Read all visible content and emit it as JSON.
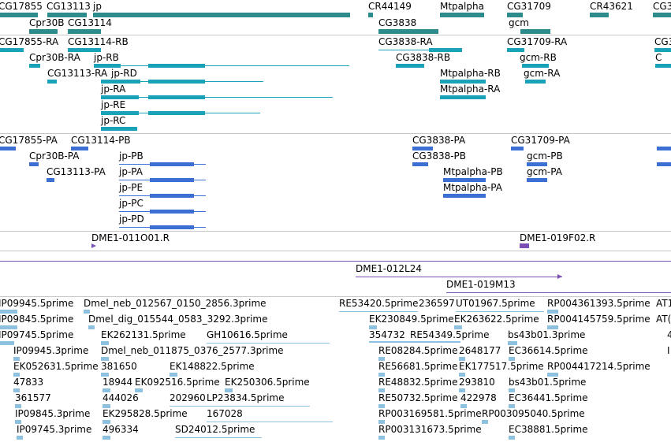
{
  "colors": {
    "gene": "#2e8b8b",
    "transcript": "#1aa3b8",
    "protein": "#3b6fd4",
    "clone": "#7a52b5",
    "est": "#8ec1e0"
  },
  "genes": [
    {
      "label": "CG17855",
      "name": "gene-cg17855"
    },
    {
      "label": "CG13113",
      "name": "gene-cg13113"
    },
    {
      "label": "jp",
      "name": "gene-jp"
    },
    {
      "label": "Cpr30B",
      "name": "gene-cpr30b"
    },
    {
      "label": "CG13114",
      "name": "gene-cg13114"
    },
    {
      "label": "CR44149",
      "name": "gene-cr44149"
    },
    {
      "label": "Mtpalpha",
      "name": "gene-mtpalpha"
    },
    {
      "label": "CG31709",
      "name": "gene-cg31709"
    },
    {
      "label": "CR43621",
      "name": "gene-cr43621"
    },
    {
      "label": "CG3",
      "name": "gene-cg3-edge"
    },
    {
      "label": "CG3838",
      "name": "gene-cg3838"
    },
    {
      "label": "gcm",
      "name": "gene-gcm"
    }
  ],
  "transcripts": [
    {
      "label": "CG17855-RA"
    },
    {
      "label": "CG13114-RB"
    },
    {
      "label": "CG3838-RA"
    },
    {
      "label": "CG31709-RA"
    },
    {
      "label": "CG3"
    },
    {
      "label": "Cpr30B-RA"
    },
    {
      "label": "jp-RB"
    },
    {
      "label": "CG3838-RB"
    },
    {
      "label": "gcm-RB"
    },
    {
      "label": "C"
    },
    {
      "label": "CG13113-RA"
    },
    {
      "label": "jp-RD"
    },
    {
      "label": "Mtpalpha-RB"
    },
    {
      "label": "gcm-RA"
    },
    {
      "label": "jp-RA"
    },
    {
      "label": "Mtpalpha-RA"
    },
    {
      "label": "jp-RE"
    },
    {
      "label": "jp-RC"
    }
  ],
  "proteins": [
    {
      "label": "CG17855-PA"
    },
    {
      "label": "CG13114-PB"
    },
    {
      "label": "CG3838-PA"
    },
    {
      "label": "CG31709-PA"
    },
    {
      "label": "Cpr30B-PA"
    },
    {
      "label": "jp-PB"
    },
    {
      "label": "CG3838-PB"
    },
    {
      "label": "gcm-PB"
    },
    {
      "label": "CG13113-PA"
    },
    {
      "label": "jp-PA"
    },
    {
      "label": "Mtpalpha-PB"
    },
    {
      "label": "gcm-PA"
    },
    {
      "label": "jp-PE"
    },
    {
      "label": "Mtpalpha-PA"
    },
    {
      "label": "jp-PC"
    },
    {
      "label": "jp-PD"
    }
  ],
  "clones": [
    {
      "label": "DME1-011O01.R"
    },
    {
      "label": "DME1-019F02.R"
    },
    {
      "label": "DME1-012L24"
    },
    {
      "label": "DME1-019M13"
    }
  ],
  "ests": [
    {
      "label": "IP09945.5prime"
    },
    {
      "label": "Dmel_neb_012567_0150_2856.3prime"
    },
    {
      "label": "RE53420.5prime"
    },
    {
      "label": "236597"
    },
    {
      "label": "UT01967.5prime"
    },
    {
      "label": "RP004361393.5prime"
    },
    {
      "label": "AT1"
    },
    {
      "label": "IP09845.5prime"
    },
    {
      "label": "Dmel_dig_015544_0583_3292.3prime"
    },
    {
      "label": "EK230849.5prime"
    },
    {
      "label": "EK263622.5prime"
    },
    {
      "label": "RP004145759.5prime"
    },
    {
      "label": "AT("
    },
    {
      "label": "IP09745.5prime"
    },
    {
      "label": "EK262131.5prime"
    },
    {
      "label": "GH10616.5prime"
    },
    {
      "label": "354732"
    },
    {
      "label": "RE54349.5prime"
    },
    {
      "label": "bs43b01.3prime"
    },
    {
      "label": "4"
    },
    {
      "label": "IP09945.3prime"
    },
    {
      "label": "Dmel_neb_011875_0376_2577.3prime"
    },
    {
      "label": "RE08284.5prime"
    },
    {
      "label": "2648177"
    },
    {
      "label": "EC36614.5prime"
    },
    {
      "label": "I"
    },
    {
      "label": "EK052631.5prime"
    },
    {
      "label": "381650"
    },
    {
      "label": "EK148822.5prime"
    },
    {
      "label": "RE56681.5prime"
    },
    {
      "label": "EK177517.5prime"
    },
    {
      "label": "RP004417214.5prime"
    },
    {
      "label": "47833"
    },
    {
      "label": "18944"
    },
    {
      "label": "EK092516.5prime"
    },
    {
      "label": "EK250306.5prime"
    },
    {
      "label": "RE48832.5prime"
    },
    {
      "label": "293810"
    },
    {
      "label": "bs43b01.5prime"
    },
    {
      "label": "361577"
    },
    {
      "label": "444026"
    },
    {
      "label": "202960"
    },
    {
      "label": "LP23834.5prime"
    },
    {
      "label": "RE50732.5prime"
    },
    {
      "label": "422978"
    },
    {
      "label": "EC36441.5prime"
    },
    {
      "label": "IP09845.3prime"
    },
    {
      "label": "EK295828.5prime"
    },
    {
      "label": "167028"
    },
    {
      "label": "RP003169581.5prime"
    },
    {
      "label": "RP003095040.5prime"
    },
    {
      "label": "IP09745.3prime"
    },
    {
      "label": "496334"
    },
    {
      "label": "SD24012.5prime"
    },
    {
      "label": "RP003131673.5prime"
    },
    {
      "label": "EC38881.5prime"
    }
  ]
}
